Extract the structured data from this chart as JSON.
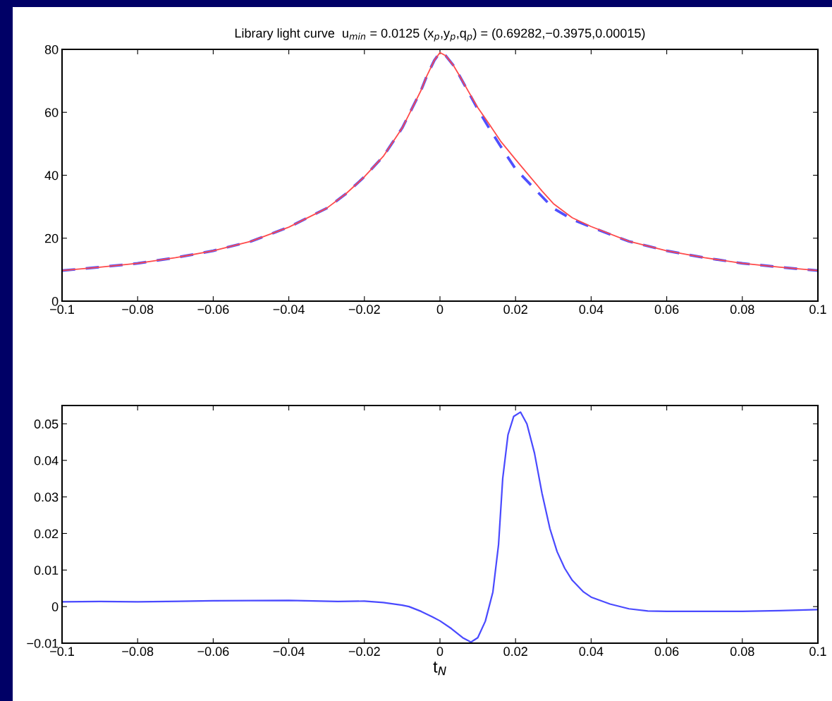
{
  "chart_data": [
    {
      "type": "line",
      "title": "Library light curve  u$_{min}$ = 0.0125 (x$_{p}$,y$_{p}$,q$_{p}$) = (0.69282,−0.3975,0.00015)",
      "series": [
        {
          "color": "#5050ff",
          "line_style": "dashed",
          "x": [
            -0.1,
            -0.09,
            -0.08,
            -0.07,
            -0.06,
            -0.05,
            -0.04,
            -0.03,
            -0.025,
            -0.02,
            -0.015,
            -0.01,
            -0.0075,
            -0.005,
            -0.0035,
            -0.0015,
            0,
            0.0015,
            0.0035,
            0.005,
            0.0075,
            0.01,
            0.013,
            0.016,
            0.02,
            0.0267,
            0.03,
            0.035,
            0.04,
            0.05,
            0.06,
            0.07,
            0.08,
            0.09,
            0.1
          ],
          "values": [
            9.7,
            10.8,
            12.0,
            13.8,
            16.0,
            19.0,
            23.5,
            29.5,
            34,
            39.5,
            46,
            55,
            61,
            67,
            71.5,
            76.5,
            79,
            78,
            75,
            72,
            66.5,
            61,
            55,
            49.3,
            42,
            33.6,
            29.5,
            26,
            23.5,
            19.0,
            16.0,
            13.8,
            12.0,
            10.8,
            9.7
          ]
        },
        {
          "color": "#ff4a4a",
          "line_style": "solid",
          "x": [
            -0.1,
            -0.09,
            -0.08,
            -0.07,
            -0.06,
            -0.05,
            -0.04,
            -0.03,
            -0.025,
            -0.02,
            -0.015,
            -0.01,
            -0.0075,
            -0.005,
            -0.0035,
            -0.0015,
            0,
            0.0015,
            0.0035,
            0.005,
            0.0075,
            0.01,
            0.013,
            0.016,
            0.02,
            0.027,
            0.03,
            0.035,
            0.04,
            0.05,
            0.06,
            0.07,
            0.08,
            0.09,
            0.1
          ],
          "values": [
            9.7,
            10.8,
            12.0,
            13.8,
            16.0,
            19.0,
            23.5,
            29.5,
            34,
            39.5,
            46,
            55,
            61,
            67,
            71.5,
            76.5,
            79,
            78,
            75,
            72,
            66.7,
            61.5,
            56.3,
            50.9,
            45,
            35,
            31,
            26.5,
            23.7,
            19.0,
            16.0,
            13.8,
            12.0,
            10.8,
            9.7
          ]
        }
      ],
      "xlim": [
        -0.1,
        0.1
      ],
      "xticks": [
        {
          "value": -0.1,
          "label": "−0.1"
        },
        {
          "value": -0.08,
          "label": "−0.08"
        },
        {
          "value": -0.06,
          "label": "−0.06"
        },
        {
          "value": -0.04,
          "label": "−0.04"
        },
        {
          "value": -0.02,
          "label": "−0.02"
        },
        0,
        0.02,
        0.04,
        0.06,
        0.08,
        0.1
      ],
      "ylim": [
        0,
        80
      ],
      "yticks": [
        0,
        20,
        40,
        60,
        80
      ],
      "grid": false
    },
    {
      "type": "line",
      "xlabel": "t$_{N}$",
      "series": [
        {
          "color": "#4a4aff",
          "line_style": "solid",
          "x": [
            -0.1,
            -0.09,
            -0.08,
            -0.06,
            -0.04,
            -0.027,
            -0.02,
            -0.015,
            -0.01,
            -0.0082,
            -0.005,
            -0.002,
            0,
            0.003,
            0.006,
            0.0082,
            0.01,
            0.012,
            0.014,
            0.0155,
            0.0166,
            0.018,
            0.0195,
            0.0213,
            0.023,
            0.025,
            0.027,
            0.0291,
            0.031,
            0.033,
            0.035,
            0.038,
            0.04,
            0.045,
            0.05,
            0.055,
            0.06,
            0.07,
            0.08,
            0.09,
            0.1
          ],
          "values": [
            0.0013,
            0.0014,
            0.0013,
            0.0016,
            0.0017,
            0.0014,
            0.0015,
            0.0011,
            0.0004,
            0,
            -0.0013,
            -0.0028,
            -0.0039,
            -0.006,
            -0.0085,
            -0.0097,
            -0.0085,
            -0.004,
            0.004,
            0.017,
            0.035,
            0.047,
            0.052,
            0.0532,
            0.05,
            0.042,
            0.031,
            0.0213,
            0.015,
            0.0105,
            0.0072,
            0.004,
            0.0026,
            0.0007,
            -0.0006,
            -0.0012,
            -0.0013,
            -0.0013,
            -0.0013,
            -0.0011,
            -0.0008
          ]
        }
      ],
      "xlim": [
        -0.1,
        0.1
      ],
      "xticks": [
        {
          "value": -0.1,
          "label": "−0.1"
        },
        {
          "value": -0.08,
          "label": "−0.08"
        },
        {
          "value": -0.06,
          "label": "−0.06"
        },
        {
          "value": -0.04,
          "label": "−0.04"
        },
        {
          "value": -0.02,
          "label": "−0.02"
        },
        0,
        0.02,
        0.04,
        0.06,
        0.08,
        0.1
      ],
      "ylim": [
        -0.01,
        0.055
      ],
      "yticks": [
        {
          "value": -0.01,
          "label": "−0.01"
        },
        0,
        0.01,
        0.02,
        0.03,
        0.04,
        0.05
      ],
      "grid": false
    }
  ]
}
